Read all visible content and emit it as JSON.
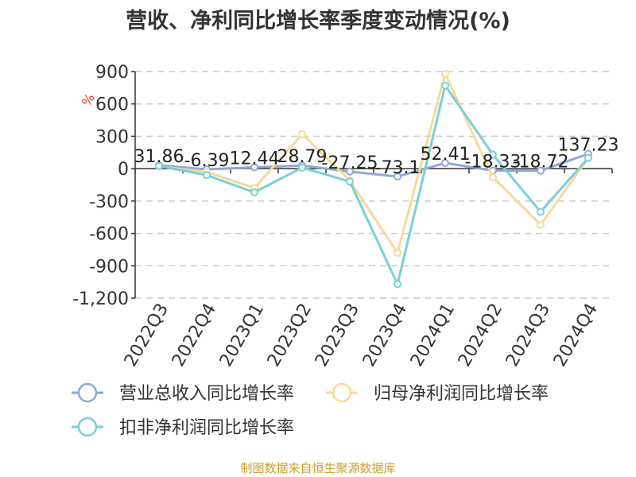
{
  "chart_data": {
    "type": "line",
    "title": "营收、净利同比增长率季度变动情况(%)",
    "ylabel": "%",
    "ylim": [
      -1200,
      900
    ],
    "yticks": [
      900,
      600,
      300,
      0,
      -300,
      -600,
      -900,
      -1200
    ],
    "ytick_labels": [
      "900",
      "600",
      "300",
      "0",
      "-300",
      "-600",
      "-900",
      "-1,200"
    ],
    "categories": [
      "2022Q3",
      "2022Q4",
      "2023Q1",
      "2023Q2",
      "2023Q3",
      "2023Q4",
      "2024Q1",
      "2024Q2",
      "2024Q3",
      "2024Q4"
    ],
    "series": [
      {
        "name": "营业总收入同比增长率",
        "color": "#8fa8d8",
        "values": [
          31.86,
          -6.39,
          12.44,
          28.79,
          -27.25,
          -73.1,
          52.41,
          -18.33,
          -18.72,
          137.23
        ]
      },
      {
        "name": "归母净利润同比增长率",
        "color": "#f9d89c",
        "values": [
          20,
          -30,
          -180,
          320,
          -110,
          -780,
          880,
          -80,
          -520,
          100
        ]
      },
      {
        "name": "扣非净利润同比增长率",
        "color": "#7ad0d6",
        "values": [
          25,
          -60,
          -220,
          10,
          -120,
          -1070,
          770,
          130,
          -400,
          100
        ]
      }
    ],
    "data_labels": [
      "31.86",
      "-6.39",
      "12.44",
      "28.79",
      "-27.25",
      "-73.1",
      "52.41",
      "-18.33",
      "-18.72",
      "137.23"
    ],
    "grid": true,
    "legend_position": "bottom"
  },
  "source": "制图数据来自恒生聚源数据库"
}
